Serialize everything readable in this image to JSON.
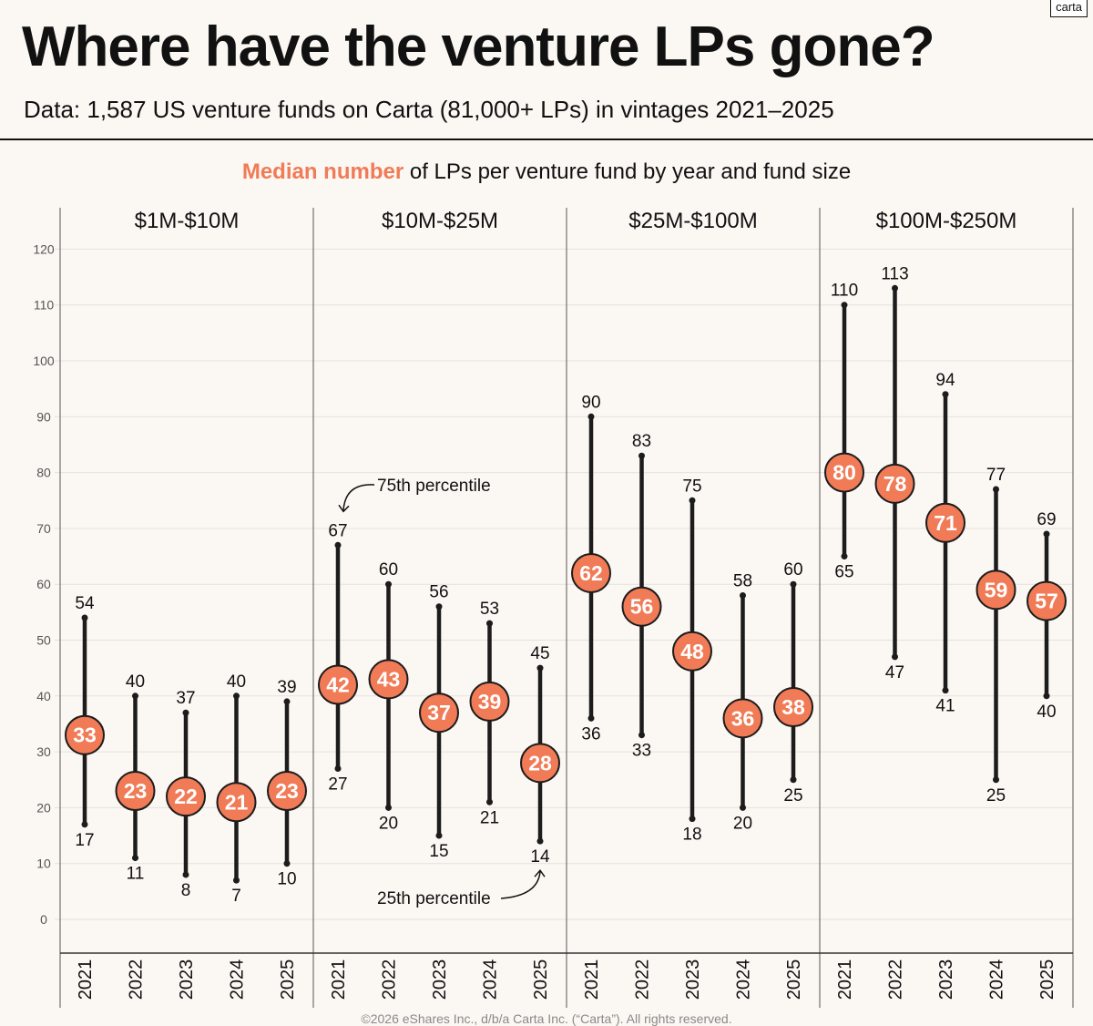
{
  "header": {
    "logo": "carta",
    "title": "Where have the venture LPs gone?",
    "subtitle": "Data: 1,587 US venture funds on Carta (81,000+ LPs) in vintages 2021–2025"
  },
  "chart_heading": {
    "highlight": "Median number",
    "rest": "of LPs per venture fund by year and fund size"
  },
  "footer": "©2026 eShares Inc., d/b/a Carta Inc. (“Carta”). All rights reserved.",
  "colors": {
    "accent": "#f07b56",
    "ink": "#111111",
    "background": "#fbf7f3",
    "grid": "#e5e1dd"
  },
  "chart_data": {
    "type": "range",
    "title": "Median number of LPs per venture fund by year and fund size",
    "ylim": [
      0,
      120
    ],
    "yticks": [
      0,
      10,
      20,
      30,
      40,
      50,
      60,
      70,
      80,
      90,
      100,
      110,
      120
    ],
    "grid": true,
    "annotations": {
      "p75": "75th percentile",
      "p25": "25th percentile"
    },
    "panels": [
      {
        "name": "$1M-$10M",
        "years": [
          "2021",
          "2022",
          "2023",
          "2024",
          "2025"
        ],
        "p25": [
          17,
          11,
          8,
          7,
          10
        ],
        "median": [
          33,
          23,
          22,
          21,
          23
        ],
        "p75": [
          54,
          40,
          37,
          40,
          39
        ]
      },
      {
        "name": "$10M-$25M",
        "years": [
          "2021",
          "2022",
          "2023",
          "2024",
          "2025"
        ],
        "p25": [
          27,
          20,
          15,
          21,
          14
        ],
        "median": [
          42,
          43,
          37,
          39,
          28
        ],
        "p75": [
          67,
          60,
          56,
          53,
          45
        ]
      },
      {
        "name": "$25M-$100M",
        "years": [
          "2021",
          "2022",
          "2023",
          "2024",
          "2025"
        ],
        "p25": [
          36,
          33,
          18,
          20,
          25
        ],
        "median": [
          62,
          56,
          48,
          36,
          38
        ],
        "p75": [
          90,
          83,
          75,
          58,
          60
        ]
      },
      {
        "name": "$100M-$250M",
        "years": [
          "2021",
          "2022",
          "2023",
          "2024",
          "2025"
        ],
        "p25": [
          65,
          47,
          41,
          25,
          40
        ],
        "median": [
          80,
          78,
          71,
          59,
          57
        ],
        "p75": [
          110,
          113,
          94,
          77,
          69
        ]
      }
    ]
  }
}
